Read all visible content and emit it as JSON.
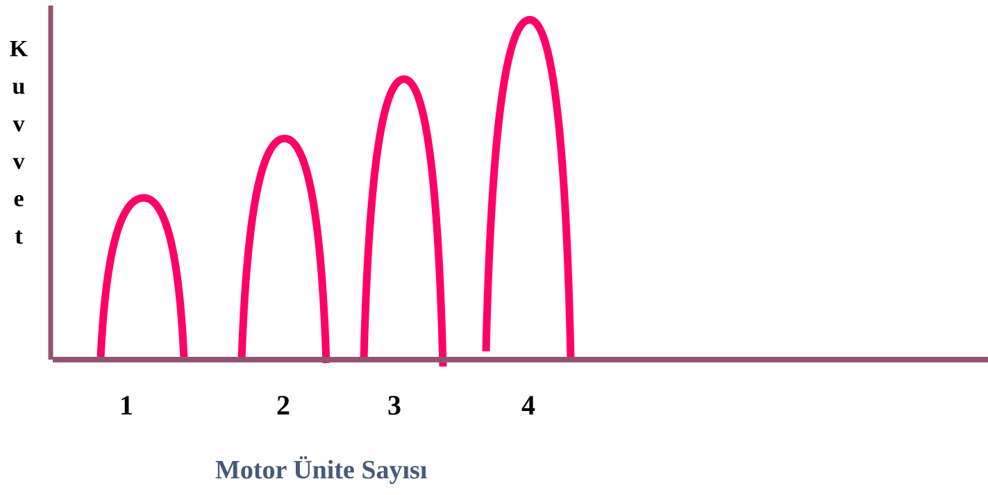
{
  "axis_title_y": "Kuvvet",
  "axis_title_y_letters": [
    "K",
    "u",
    "v",
    "v",
    "e",
    "t"
  ],
  "axis_title_x": "Motor Ünite Sayısı",
  "colors": {
    "axis": "#925470",
    "curve": "#ff0066",
    "axis_title_x": "#465a78",
    "text": "#000000"
  },
  "chart_data": {
    "type": "diagram",
    "xlabel": "Motor Ünite Sayısı",
    "ylabel": "Kuvvet",
    "categories": [
      "1",
      "2",
      "3",
      "4"
    ],
    "series": [
      {
        "values": [
          1,
          2,
          3,
          4
        ]
      }
    ]
  }
}
